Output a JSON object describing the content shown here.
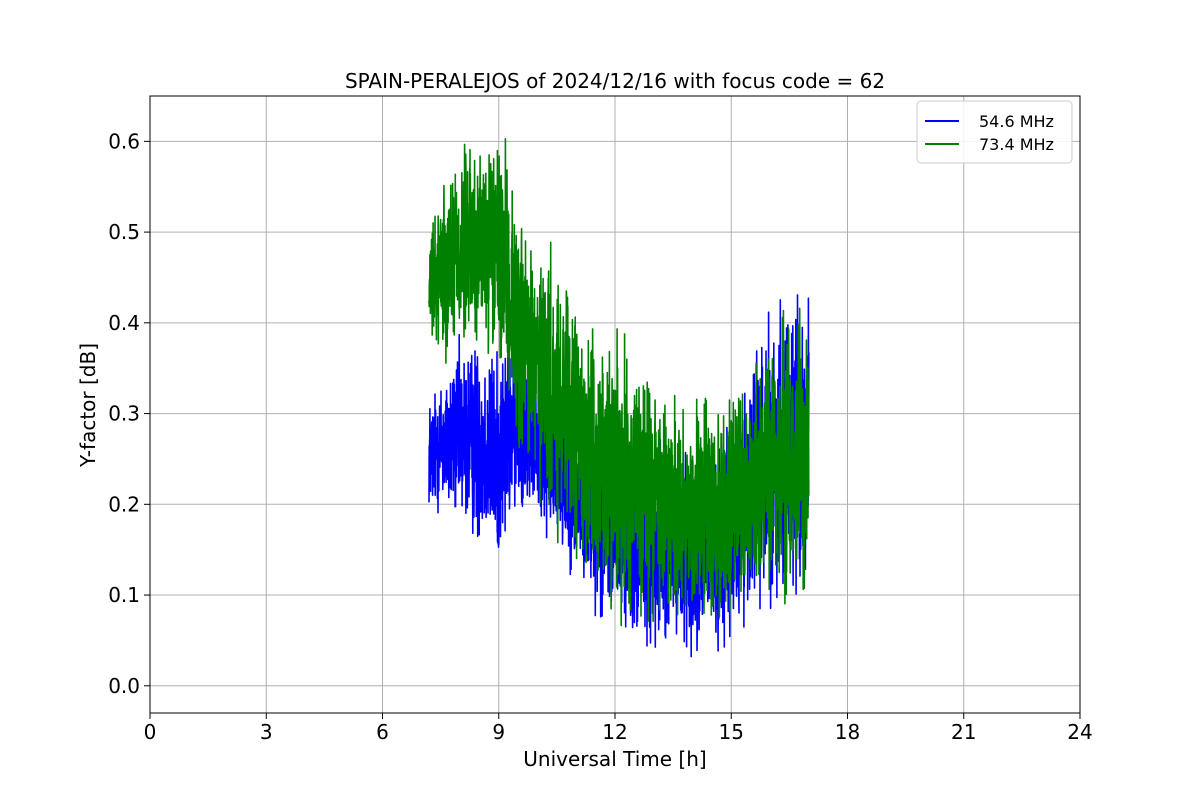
{
  "chart_data": {
    "type": "line",
    "title": "SPAIN-PERALEJOS of 2024/12/16 with focus code = 62",
    "xlabel": "Universal Time [h]",
    "ylabel": "Y-factor [dB]",
    "xlim": [
      0,
      24
    ],
    "ylim": [
      -0.03,
      0.65
    ],
    "xticks": [
      0,
      3,
      6,
      9,
      12,
      15,
      18,
      21,
      24
    ],
    "xtick_labels": [
      "0",
      "3",
      "6",
      "9",
      "12",
      "15",
      "18",
      "21",
      "24"
    ],
    "yticks": [
      0.0,
      0.1,
      0.2,
      0.3,
      0.4,
      0.5,
      0.6
    ],
    "ytick_labels": [
      "0.0",
      "0.1",
      "0.2",
      "0.3",
      "0.4",
      "0.5",
      "0.6"
    ],
    "grid": true,
    "legend_position": "top-right",
    "series": [
      {
        "name": "54.6 MHz",
        "color": "#0000ff",
        "x_range": [
          7.2,
          17.0
        ],
        "envelope_x": [
          7.2,
          7.5,
          8.0,
          8.5,
          9.0,
          9.5,
          10.0,
          10.5,
          11.0,
          11.5,
          12.0,
          12.5,
          13.0,
          13.5,
          14.0,
          14.5,
          15.0,
          15.5,
          16.0,
          16.5,
          17.0
        ],
        "envelope_low": [
          0.18,
          0.18,
          0.16,
          0.14,
          0.12,
          0.19,
          0.17,
          0.15,
          0.11,
          0.08,
          0.05,
          0.04,
          0.03,
          0.03,
          0.03,
          0.02,
          0.03,
          0.06,
          0.08,
          0.07,
          0.09
        ],
        "envelope_high": [
          0.33,
          0.35,
          0.39,
          0.4,
          0.38,
          0.42,
          0.36,
          0.34,
          0.3,
          0.3,
          0.28,
          0.27,
          0.28,
          0.27,
          0.26,
          0.27,
          0.3,
          0.38,
          0.43,
          0.46,
          0.45
        ]
      },
      {
        "name": "73.4 MHz",
        "color": "#008000",
        "x_range": [
          7.2,
          17.0
        ],
        "envelope_x": [
          7.2,
          7.5,
          8.0,
          8.5,
          9.0,
          9.5,
          10.0,
          10.5,
          11.0,
          11.5,
          12.0,
          12.5,
          13.0,
          13.5,
          14.0,
          14.5,
          15.0,
          15.5,
          16.0,
          16.5,
          17.0
        ],
        "envelope_low": [
          0.37,
          0.36,
          0.35,
          0.36,
          0.34,
          0.24,
          0.19,
          0.14,
          0.13,
          0.1,
          0.08,
          0.06,
          0.05,
          0.05,
          0.05,
          0.04,
          0.06,
          0.08,
          0.09,
          0.08,
          0.1
        ],
        "envelope_high": [
          0.49,
          0.57,
          0.61,
          0.61,
          0.62,
          0.55,
          0.5,
          0.47,
          0.44,
          0.39,
          0.4,
          0.39,
          0.37,
          0.35,
          0.34,
          0.34,
          0.33,
          0.36,
          0.39,
          0.43,
          0.42
        ]
      }
    ]
  }
}
